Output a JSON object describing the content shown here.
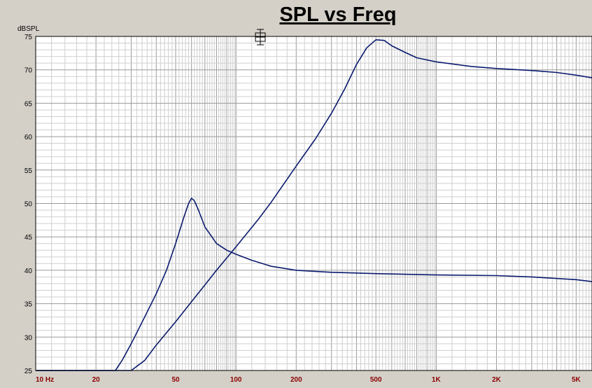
{
  "chart_data": {
    "type": "line",
    "title": "SPL vs Freq",
    "ylabel": "dBSPL",
    "xlabel": "",
    "x_scale": "log",
    "xlim": [
      10,
      6000
    ],
    "ylim": [
      25,
      75
    ],
    "grid": true,
    "y_ticks": [
      25,
      30,
      35,
      40,
      45,
      50,
      55,
      60,
      65,
      70,
      75
    ],
    "x_ticks": [
      {
        "value": 10,
        "label": "10  Hz"
      },
      {
        "value": 20,
        "label": "20"
      },
      {
        "value": 50,
        "label": "50"
      },
      {
        "value": 100,
        "label": "100"
      },
      {
        "value": 200,
        "label": "200"
      },
      {
        "value": 500,
        "label": "500"
      },
      {
        "value": 1000,
        "label": "1K"
      },
      {
        "value": 2000,
        "label": "2K"
      },
      {
        "value": 5000,
        "label": "5K"
      }
    ],
    "line_color": "#0a1a6e",
    "series": [
      {
        "x": [
          10,
          20,
          25,
          27,
          30,
          35,
          40,
          45,
          50,
          55,
          58,
          60,
          62,
          65,
          70,
          80,
          90,
          100,
          120,
          150,
          200,
          300,
          500,
          1000,
          2000,
          3000,
          5000,
          6000
        ],
        "y": [
          25,
          25,
          25,
          26.5,
          29,
          33,
          36.5,
          40,
          44,
          48,
          50,
          50.8,
          50.4,
          49,
          46.5,
          44,
          43,
          42.4,
          41.5,
          40.6,
          40,
          39.7,
          39.5,
          39.3,
          39.2,
          39,
          38.6,
          38.3
        ]
      },
      {
        "x": [
          10,
          25,
          30,
          35,
          40,
          50,
          60,
          70,
          80,
          100,
          130,
          150,
          200,
          250,
          300,
          350,
          400,
          450,
          500,
          550,
          600,
          700,
          800,
          1000,
          1500,
          2000,
          3000,
          4000,
          5000,
          6000
        ],
        "y": [
          25,
          25,
          25,
          26.5,
          28.8,
          32.3,
          35.3,
          37.8,
          40,
          43.5,
          47.7,
          50.2,
          55.6,
          59.7,
          63.5,
          67.2,
          70.8,
          73.3,
          74.5,
          74.4,
          73.6,
          72.6,
          71.8,
          71.2,
          70.5,
          70.2,
          69.9,
          69.6,
          69.2,
          68.8
        ]
      }
    ]
  }
}
